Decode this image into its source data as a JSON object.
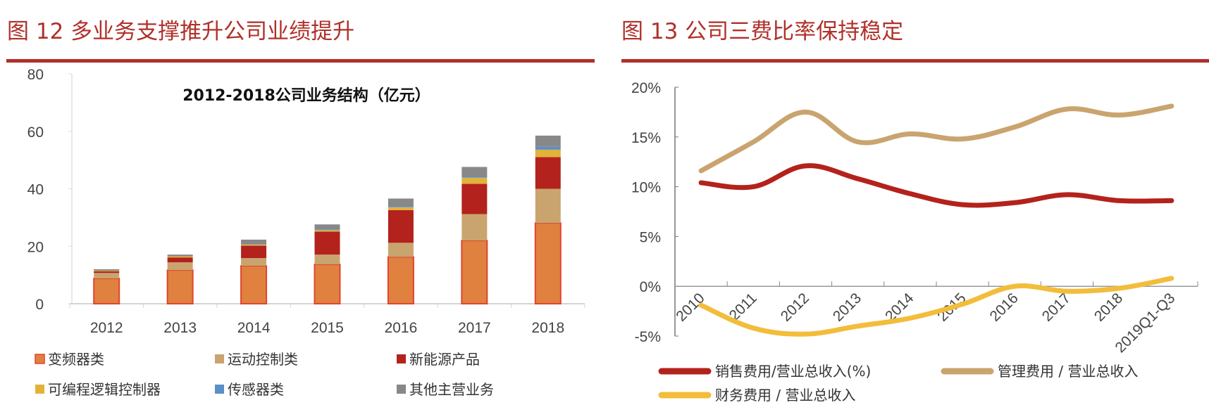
{
  "figures": {
    "left_title": "图 12  多业务支撑推升公司业绩提升",
    "right_title": "图 13  公司三费比率保持稳定"
  },
  "chart_data": [
    {
      "type": "bar",
      "stacked": true,
      "title": "2012-2018公司业务结构（亿元）",
      "categories": [
        "2012",
        "2013",
        "2014",
        "2015",
        "2016",
        "2017",
        "2018"
      ],
      "ylim": [
        0,
        80
      ],
      "yticks": [
        "0",
        "20",
        "40",
        "60",
        "80"
      ],
      "grid": false,
      "legend": "bottom",
      "series": [
        {
          "name": "变频器类",
          "color": "#e0813f",
          "values": [
            8.8,
            11.7,
            13.2,
            13.7,
            16.3,
            22.0,
            28.1
          ]
        },
        {
          "name": "运动控制类",
          "color": "#c9a46e",
          "values": [
            1.9,
            2.7,
            2.7,
            3.4,
            4.9,
            9.2,
            11.9
          ]
        },
        {
          "name": "新能源产品",
          "color": "#b3221c",
          "values": [
            0.6,
            1.7,
            4.3,
            8.0,
            11.4,
            10.5,
            11.0
          ]
        },
        {
          "name": "可编程逻辑控制器",
          "color": "#e2b23a",
          "values": [
            0.2,
            0.4,
            0.4,
            0.5,
            1.0,
            2.2,
            2.6
          ]
        },
        {
          "name": "传感器类",
          "color": "#5b8fc7",
          "values": [
            0.0,
            0.0,
            0.1,
            0.3,
            0.4,
            0.5,
            1.0
          ]
        },
        {
          "name": "其他主营业务",
          "color": "#888888",
          "values": [
            0.5,
            0.6,
            1.6,
            1.7,
            2.6,
            3.2,
            3.9
          ]
        }
      ]
    },
    {
      "type": "line",
      "categories": [
        "2010",
        "2011",
        "2012",
        "2013",
        "2014",
        "2015",
        "2016",
        "2017",
        "2018",
        "2019Q1-Q3"
      ],
      "ylim": [
        -5,
        20
      ],
      "yticks": [
        "-5%",
        "0%",
        "5%",
        "10%",
        "15%",
        "20%"
      ],
      "grid": false,
      "legend": "bottom",
      "smooth": true,
      "series": [
        {
          "name": "销售费用/营业总收入(%)",
          "color": "#b3221c",
          "values": [
            10.4,
            10.0,
            12.1,
            10.8,
            9.3,
            8.2,
            8.4,
            9.2,
            8.6,
            8.6
          ]
        },
        {
          "name": "管理费用 / 营业总收入",
          "color": "#c9a46e",
          "values": [
            11.6,
            14.5,
            17.5,
            14.5,
            15.3,
            14.8,
            16.0,
            17.8,
            17.2,
            18.1
          ]
        },
        {
          "name": "财务费用 / 营业总收入",
          "color": "#f2bd3a",
          "values": [
            -1.9,
            -4.2,
            -4.8,
            -4.0,
            -3.2,
            -1.8,
            0.0,
            -0.5,
            -0.2,
            0.8
          ]
        }
      ]
    }
  ]
}
